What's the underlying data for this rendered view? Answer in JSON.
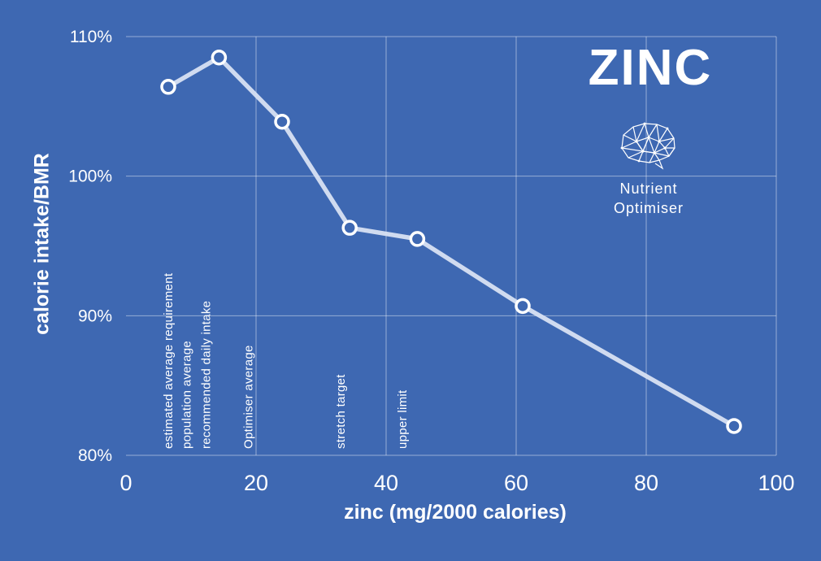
{
  "title": "ZINC",
  "logo": {
    "line1": "Nutrient",
    "line2": "Optimiser"
  },
  "colors": {
    "background": "#3E68B2",
    "line": "#D8E1F3",
    "grid": "rgba(255,255,255,0.45)",
    "marker_stroke": "#FFFFFF",
    "text": "#FFFFFF"
  },
  "chart_data": {
    "type": "line",
    "title": "ZINC",
    "xlabel": "zinc (mg/2000 calories)",
    "ylabel": "calorie intake/BMR",
    "x": [
      6.5,
      14.3,
      24,
      34.4,
      44.8,
      61,
      93.5
    ],
    "y": [
      106.4,
      108.5,
      103.9,
      96.3,
      95.5,
      90.7,
      82.1
    ],
    "xlim": [
      0,
      100
    ],
    "ylim": [
      80,
      110
    ],
    "x_ticks": [
      0,
      20,
      40,
      60,
      80,
      100
    ],
    "y_ticks": [
      80,
      90,
      100,
      110
    ],
    "y_tick_suffix": "%",
    "grid": true,
    "annotations": [
      {
        "label": "estimated average requirement",
        "x": 6.5
      },
      {
        "label": "population average",
        "x": 9.3
      },
      {
        "label": "recommended daily intake",
        "x": 12.3
      },
      {
        "label": "Optimiser average",
        "x": 18.8
      },
      {
        "label": "stretch target",
        "x": 33.0
      },
      {
        "label": "upper limit",
        "x": 42.5
      }
    ]
  }
}
